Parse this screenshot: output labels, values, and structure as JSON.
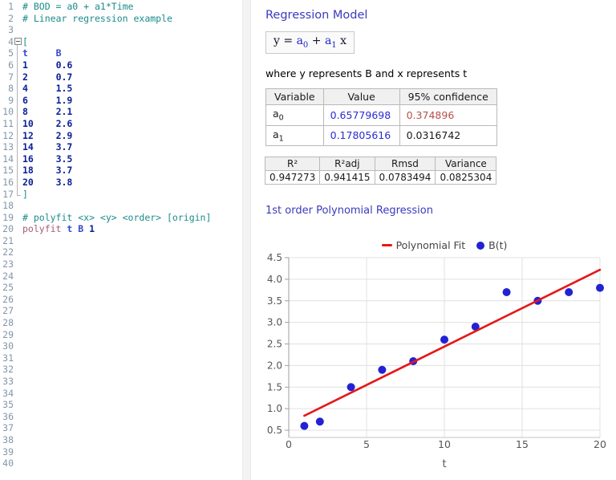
{
  "editor": {
    "total_lines": 40,
    "fold": {
      "start_line": 4,
      "end_line": 17
    },
    "lines": [
      [
        [
          "c",
          "# BOD = a0 + a1*Time"
        ]
      ],
      [
        [
          "c",
          "# Linear regression example"
        ]
      ],
      [],
      [
        [
          "b",
          "["
        ]
      ],
      [
        [
          "v",
          "t"
        ],
        [
          "p",
          "     "
        ],
        [
          "v",
          "B"
        ]
      ],
      [
        [
          "n",
          "1"
        ],
        [
          "p",
          "     "
        ],
        [
          "n",
          "0.6"
        ]
      ],
      [
        [
          "n",
          "2"
        ],
        [
          "p",
          "     "
        ],
        [
          "n",
          "0.7"
        ]
      ],
      [
        [
          "n",
          "4"
        ],
        [
          "p",
          "     "
        ],
        [
          "n",
          "1.5"
        ]
      ],
      [
        [
          "n",
          "6"
        ],
        [
          "p",
          "     "
        ],
        [
          "n",
          "1.9"
        ]
      ],
      [
        [
          "n",
          "8"
        ],
        [
          "p",
          "     "
        ],
        [
          "n",
          "2.1"
        ]
      ],
      [
        [
          "n",
          "10"
        ],
        [
          "p",
          "    "
        ],
        [
          "n",
          "2.6"
        ]
      ],
      [
        [
          "n",
          "12"
        ],
        [
          "p",
          "    "
        ],
        [
          "n",
          "2.9"
        ]
      ],
      [
        [
          "n",
          "14"
        ],
        [
          "p",
          "    "
        ],
        [
          "n",
          "3.7"
        ]
      ],
      [
        [
          "n",
          "16"
        ],
        [
          "p",
          "    "
        ],
        [
          "n",
          "3.5"
        ]
      ],
      [
        [
          "n",
          "18"
        ],
        [
          "p",
          "    "
        ],
        [
          "n",
          "3.7"
        ]
      ],
      [
        [
          "n",
          "20"
        ],
        [
          "p",
          "    "
        ],
        [
          "n",
          "3.8"
        ]
      ],
      [
        [
          "b",
          "]"
        ]
      ],
      [],
      [
        [
          "c",
          "# polyfit <x> <y> <order> [origin]"
        ]
      ],
      [
        [
          "k",
          "polyfit"
        ],
        [
          "p",
          " "
        ],
        [
          "v",
          "t"
        ],
        [
          "p",
          " "
        ],
        [
          "v",
          "B"
        ],
        [
          "p",
          " "
        ],
        [
          "n",
          "1"
        ]
      ]
    ]
  },
  "output": {
    "title": "Regression Model",
    "equation": {
      "parts": [
        {
          "text": "y",
          "color": "dark",
          "sub": false,
          "space_after": true
        },
        {
          "text": "=",
          "color": "dark",
          "sub": false,
          "space_after": true
        },
        {
          "text": "a",
          "color": "blue",
          "sub": false,
          "space_after": false
        },
        {
          "text": "0",
          "color": "blue",
          "sub": true,
          "space_after": true
        },
        {
          "text": "+",
          "color": "dark",
          "sub": false,
          "space_after": true
        },
        {
          "text": "a",
          "color": "blue",
          "sub": false,
          "space_after": false
        },
        {
          "text": "1",
          "color": "blue",
          "sub": true,
          "space_after": true
        },
        {
          "text": "x",
          "color": "dark",
          "sub": false,
          "space_after": false
        }
      ]
    },
    "where_text": "where y represents B and x represents t",
    "coef_table": {
      "headers": [
        "Variable",
        "Value",
        "95% confidence"
      ],
      "rows": [
        {
          "variable": "a",
          "variable_sub": "0",
          "value": "0.65779698",
          "confidence": "0.374896",
          "confidence_style": "alert"
        },
        {
          "variable": "a",
          "variable_sub": "1",
          "value": "0.17805616",
          "confidence": "0.0316742",
          "confidence_style": "normal"
        }
      ]
    },
    "stats_table": {
      "headers": [
        "R²",
        "R²adj",
        "Rmsd",
        "Variance"
      ],
      "values": [
        "0.947273",
        "0.941415",
        "0.0783494",
        "0.0825304"
      ]
    },
    "chart_title": "1st order Polynomial Regression"
  },
  "chart_data": {
    "type": "scatter",
    "title": "1st order Polynomial Regression",
    "xlabel": "t",
    "ylabel": "",
    "xlim": [
      0,
      20
    ],
    "ylim": [
      0.5,
      4.5
    ],
    "x_ticks": [
      0,
      5,
      10,
      15,
      20
    ],
    "y_ticks": [
      0.5,
      1.0,
      1.5,
      2.0,
      2.5,
      3.0,
      3.5,
      4.0,
      4.5
    ],
    "grid": true,
    "legend_position": "top",
    "colors": {
      "grid": "#e0e0e0",
      "axis": "#9e9e9e",
      "tick_text": "#555555"
    },
    "series": [
      {
        "name": "B(t)",
        "type": "scatter",
        "color": "#2222d4",
        "x": [
          1,
          2,
          4,
          6,
          8,
          10,
          12,
          14,
          16,
          18,
          20
        ],
        "y": [
          0.6,
          0.7,
          1.5,
          1.9,
          2.1,
          2.6,
          2.9,
          3.7,
          3.5,
          3.7,
          3.8
        ]
      },
      {
        "name": "Polynomial Fit",
        "type": "line",
        "color": "#e51718",
        "x": [
          1,
          20
        ],
        "y": [
          0.8359,
          4.2191
        ]
      }
    ],
    "legend_order": [
      "Polynomial Fit",
      "B(t)"
    ]
  }
}
